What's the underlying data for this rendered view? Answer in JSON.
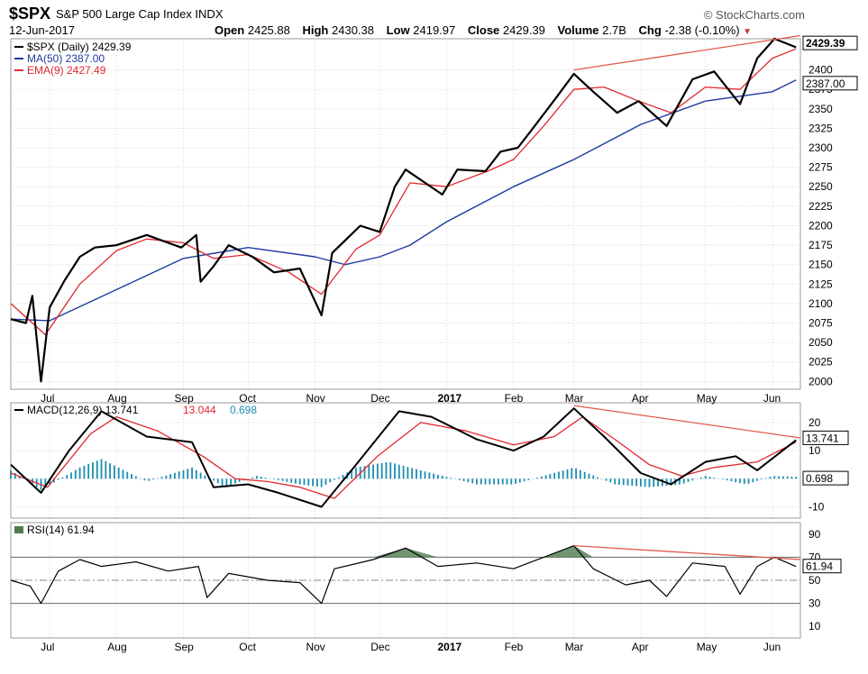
{
  "header": {
    "symbol": "$SPX",
    "name": "S&P 500 Large Cap Index  INDX",
    "brand": "© StockCharts.com",
    "date": "12-Jun-2017",
    "open_label": "Open",
    "open": "2425.88",
    "high_label": "High",
    "high": "2430.38",
    "low_label": "Low",
    "low": "2419.97",
    "close_label": "Close",
    "close": "2429.39",
    "volume_label": "Volume",
    "volume": "2.7B",
    "chg_label": "Chg",
    "chg": "-2.38 (-0.10%)"
  },
  "colors": {
    "price": "#000000",
    "ma50": "#1f3a9e",
    "ema9": "#e0282e",
    "trend": "#e05a4e",
    "hist": "#1a8db0",
    "rsi_fill": "#4e7a4e"
  },
  "chart_data": [
    {
      "type": "line",
      "legend": [
        "$SPX (Daily) 2429.39",
        "MA(50) 2387.00",
        "EMA(9) 2427.49"
      ],
      "y_ticks": [
        "2000",
        "2025",
        "2050",
        "2075",
        "2100",
        "2125",
        "2150",
        "2175",
        "2200",
        "2225",
        "2250",
        "2275",
        "2300",
        "2325",
        "2350",
        "2375",
        "2400"
      ],
      "ylim": [
        1990,
        2440
      ],
      "x_labels": [
        "Jul",
        "Aug",
        "Sep",
        "Oct",
        "Nov",
        "Dec",
        "2017",
        "Feb",
        "Mar",
        "Apr",
        "May",
        "Jun"
      ],
      "value_tags": [
        "2429.39",
        "2387.00"
      ],
      "series": [
        {
          "name": "$SPX (Daily)",
          "points": [
            [
              "2016-06-13",
              2080
            ],
            [
              "2016-06-20",
              2075
            ],
            [
              "2016-06-23",
              2110
            ],
            [
              "2016-06-27",
              2000
            ],
            [
              "2016-07-01",
              2095
            ],
            [
              "2016-07-08",
              2130
            ],
            [
              "2016-07-15",
              2160
            ],
            [
              "2016-07-22",
              2172
            ],
            [
              "2016-08-01",
              2175
            ],
            [
              "2016-08-15",
              2188
            ],
            [
              "2016-08-31",
              2172
            ],
            [
              "2016-09-07",
              2188
            ],
            [
              "2016-09-09",
              2128
            ],
            [
              "2016-09-15",
              2148
            ],
            [
              "2016-09-22",
              2175
            ],
            [
              "2016-10-03",
              2160
            ],
            [
              "2016-10-13",
              2140
            ],
            [
              "2016-10-25",
              2145
            ],
            [
              "2016-11-04",
              2085
            ],
            [
              "2016-11-09",
              2165
            ],
            [
              "2016-11-22",
              2200
            ],
            [
              "2016-12-01",
              2192
            ],
            [
              "2016-12-08",
              2250
            ],
            [
              "2016-12-13",
              2272
            ],
            [
              "2016-12-30",
              2240
            ],
            [
              "2017-01-06",
              2272
            ],
            [
              "2017-01-19",
              2270
            ],
            [
              "2017-01-26",
              2295
            ],
            [
              "2017-02-03",
              2300
            ],
            [
              "2017-02-10",
              2325
            ],
            [
              "2017-02-21",
              2365
            ],
            [
              "2017-03-01",
              2395
            ],
            [
              "2017-03-10",
              2372
            ],
            [
              "2017-03-21",
              2345
            ],
            [
              "2017-03-31",
              2360
            ],
            [
              "2017-04-13",
              2328
            ],
            [
              "2017-04-25",
              2388
            ],
            [
              "2017-05-05",
              2398
            ],
            [
              "2017-05-17",
              2356
            ],
            [
              "2017-05-25",
              2415
            ],
            [
              "2017-06-02",
              2440
            ],
            [
              "2017-06-12",
              2429
            ]
          ]
        },
        {
          "name": "MA(50)",
          "points": [
            [
              "2016-06-13",
              2080
            ],
            [
              "2016-07-01",
              2078
            ],
            [
              "2016-08-01",
              2118
            ],
            [
              "2016-09-01",
              2158
            ],
            [
              "2016-10-01",
              2172
            ],
            [
              "2016-11-01",
              2160
            ],
            [
              "2016-11-15",
              2150
            ],
            [
              "2016-12-01",
              2160
            ],
            [
              "2016-12-15",
              2175
            ],
            [
              "2017-01-01",
              2205
            ],
            [
              "2017-02-01",
              2250
            ],
            [
              "2017-03-01",
              2285
            ],
            [
              "2017-04-01",
              2330
            ],
            [
              "2017-05-01",
              2360
            ],
            [
              "2017-06-01",
              2372
            ],
            [
              "2017-06-12",
              2387
            ]
          ]
        },
        {
          "name": "EMA(9)",
          "points": [
            [
              "2016-06-13",
              2100
            ],
            [
              "2016-06-29",
              2060
            ],
            [
              "2016-07-15",
              2125
            ],
            [
              "2016-08-01",
              2168
            ],
            [
              "2016-08-15",
              2183
            ],
            [
              "2016-09-01",
              2178
            ],
            [
              "2016-09-15",
              2158
            ],
            [
              "2016-10-01",
              2163
            ],
            [
              "2016-10-20",
              2140
            ],
            [
              "2016-11-04",
              2112
            ],
            [
              "2016-11-20",
              2170
            ],
            [
              "2016-12-01",
              2188
            ],
            [
              "2016-12-15",
              2255
            ],
            [
              "2017-01-01",
              2250
            ],
            [
              "2017-01-20",
              2270
            ],
            [
              "2017-02-01",
              2285
            ],
            [
              "2017-02-15",
              2328
            ],
            [
              "2017-03-01",
              2375
            ],
            [
              "2017-03-15",
              2378
            ],
            [
              "2017-03-31",
              2360
            ],
            [
              "2017-04-15",
              2345
            ],
            [
              "2017-05-01",
              2378
            ],
            [
              "2017-05-17",
              2375
            ],
            [
              "2017-06-01",
              2415
            ],
            [
              "2017-06-12",
              2427
            ]
          ]
        },
        {
          "name": "trendline",
          "points": [
            [
              "2017-03-01",
              2400
            ],
            [
              "2017-06-14",
              2444
            ]
          ]
        }
      ]
    },
    {
      "type": "line",
      "legend": [
        "MACD(12,26,9) 13.741",
        "13.044",
        "0.698"
      ],
      "y_ticks": [
        "20",
        "10",
        "0",
        "-10"
      ],
      "ylim": [
        -14,
        27
      ],
      "value_tags": [
        "13.741",
        "0.698"
      ],
      "series": [
        {
          "name": "MACD",
          "points": [
            [
              "2016-06-13",
              5
            ],
            [
              "2016-06-27",
              -5
            ],
            [
              "2016-07-10",
              10
            ],
            [
              "2016-07-25",
              24
            ],
            [
              "2016-08-15",
              15
            ],
            [
              "2016-09-05",
              13
            ],
            [
              "2016-09-15",
              -3
            ],
            [
              "2016-10-01",
              -2
            ],
            [
              "2016-10-15",
              -5
            ],
            [
              "2016-11-04",
              -10
            ],
            [
              "2016-11-20",
              5
            ],
            [
              "2016-12-10",
              24
            ],
            [
              "2016-12-25",
              22
            ],
            [
              "2017-01-15",
              14
            ],
            [
              "2017-02-01",
              10
            ],
            [
              "2017-02-15",
              15
            ],
            [
              "2017-03-01",
              25
            ],
            [
              "2017-03-15",
              15
            ],
            [
              "2017-04-01",
              2
            ],
            [
              "2017-04-15",
              -2
            ],
            [
              "2017-05-01",
              6
            ],
            [
              "2017-05-15",
              8
            ],
            [
              "2017-05-25",
              3
            ],
            [
              "2017-06-12",
              13.741
            ]
          ]
        },
        {
          "name": "signal",
          "points": [
            [
              "2016-06-13",
              2
            ],
            [
              "2016-06-30",
              -3
            ],
            [
              "2016-07-20",
              16
            ],
            [
              "2016-08-01",
              22
            ],
            [
              "2016-08-20",
              17
            ],
            [
              "2016-09-10",
              8
            ],
            [
              "2016-09-25",
              0
            ],
            [
              "2016-10-10",
              -1
            ],
            [
              "2016-10-25",
              -3
            ],
            [
              "2016-11-10",
              -7
            ],
            [
              "2016-11-30",
              8
            ],
            [
              "2016-12-20",
              20
            ],
            [
              "2017-01-10",
              17
            ],
            [
              "2017-02-01",
              12
            ],
            [
              "2017-02-20",
              15
            ],
            [
              "2017-03-05",
              22
            ],
            [
              "2017-03-20",
              14
            ],
            [
              "2017-04-05",
              5
            ],
            [
              "2017-04-20",
              1
            ],
            [
              "2017-05-05",
              4
            ],
            [
              "2017-05-25",
              6
            ],
            [
              "2017-06-12",
              13.044
            ]
          ]
        },
        {
          "name": "histogram",
          "points": [
            [
              "2016-06-13",
              3
            ],
            [
              "2016-06-27",
              -4
            ],
            [
              "2016-07-15",
              4
            ],
            [
              "2016-07-25",
              7
            ],
            [
              "2016-08-15",
              -1
            ],
            [
              "2016-09-05",
              4
            ],
            [
              "2016-09-20",
              -3
            ],
            [
              "2016-10-05",
              1
            ],
            [
              "2016-10-25",
              -2
            ],
            [
              "2016-11-04",
              -3
            ],
            [
              "2016-11-20",
              4
            ],
            [
              "2016-12-05",
              6
            ],
            [
              "2016-12-25",
              2
            ],
            [
              "2017-01-15",
              -2
            ],
            [
              "2017-02-01",
              -2
            ],
            [
              "2017-02-15",
              1
            ],
            [
              "2017-03-01",
              4
            ],
            [
              "2017-03-20",
              -2
            ],
            [
              "2017-04-05",
              -3
            ],
            [
              "2017-04-20",
              -2
            ],
            [
              "2017-05-01",
              1
            ],
            [
              "2017-05-20",
              -2
            ],
            [
              "2017-06-01",
              1
            ],
            [
              "2017-06-12",
              0.698
            ]
          ]
        },
        {
          "name": "trendline",
          "points": [
            [
              "2017-03-01",
              26
            ],
            [
              "2017-06-14",
              14.5
            ]
          ]
        }
      ]
    },
    {
      "type": "line",
      "legend": [
        "RSI(14) 61.94"
      ],
      "y_ticks": [
        "90",
        "70",
        "50",
        "30",
        "10"
      ],
      "ylim": [
        0,
        100
      ],
      "value_tags": [
        "61.94"
      ],
      "series": [
        {
          "name": "RSI(14)",
          "points": [
            [
              "2016-06-13",
              50
            ],
            [
              "2016-06-22",
              45
            ],
            [
              "2016-06-27",
              30
            ],
            [
              "2016-07-05",
              58
            ],
            [
              "2016-07-15",
              68
            ],
            [
              "2016-07-25",
              62
            ],
            [
              "2016-08-10",
              66
            ],
            [
              "2016-08-25",
              58
            ],
            [
              "2016-09-08",
              62
            ],
            [
              "2016-09-12",
              35
            ],
            [
              "2016-09-22",
              56
            ],
            [
              "2016-10-10",
              50
            ],
            [
              "2016-10-25",
              48
            ],
            [
              "2016-11-04",
              30
            ],
            [
              "2016-11-10",
              60
            ],
            [
              "2016-11-28",
              68
            ],
            [
              "2016-12-13",
              78
            ],
            [
              "2016-12-28",
              62
            ],
            [
              "2017-01-15",
              65
            ],
            [
              "2017-02-01",
              60
            ],
            [
              "2017-02-15",
              70
            ],
            [
              "2017-03-01",
              80
            ],
            [
              "2017-03-10",
              60
            ],
            [
              "2017-03-25",
              46
            ],
            [
              "2017-04-05",
              50
            ],
            [
              "2017-04-13",
              36
            ],
            [
              "2017-04-25",
              65
            ],
            [
              "2017-05-10",
              62
            ],
            [
              "2017-05-17",
              38
            ],
            [
              "2017-05-25",
              62
            ],
            [
              "2017-06-02",
              70
            ],
            [
              "2017-06-12",
              61.94
            ]
          ]
        },
        {
          "name": "trendline",
          "points": [
            [
              "2017-03-01",
              80
            ],
            [
              "2017-06-14",
              68
            ]
          ]
        }
      ]
    }
  ]
}
